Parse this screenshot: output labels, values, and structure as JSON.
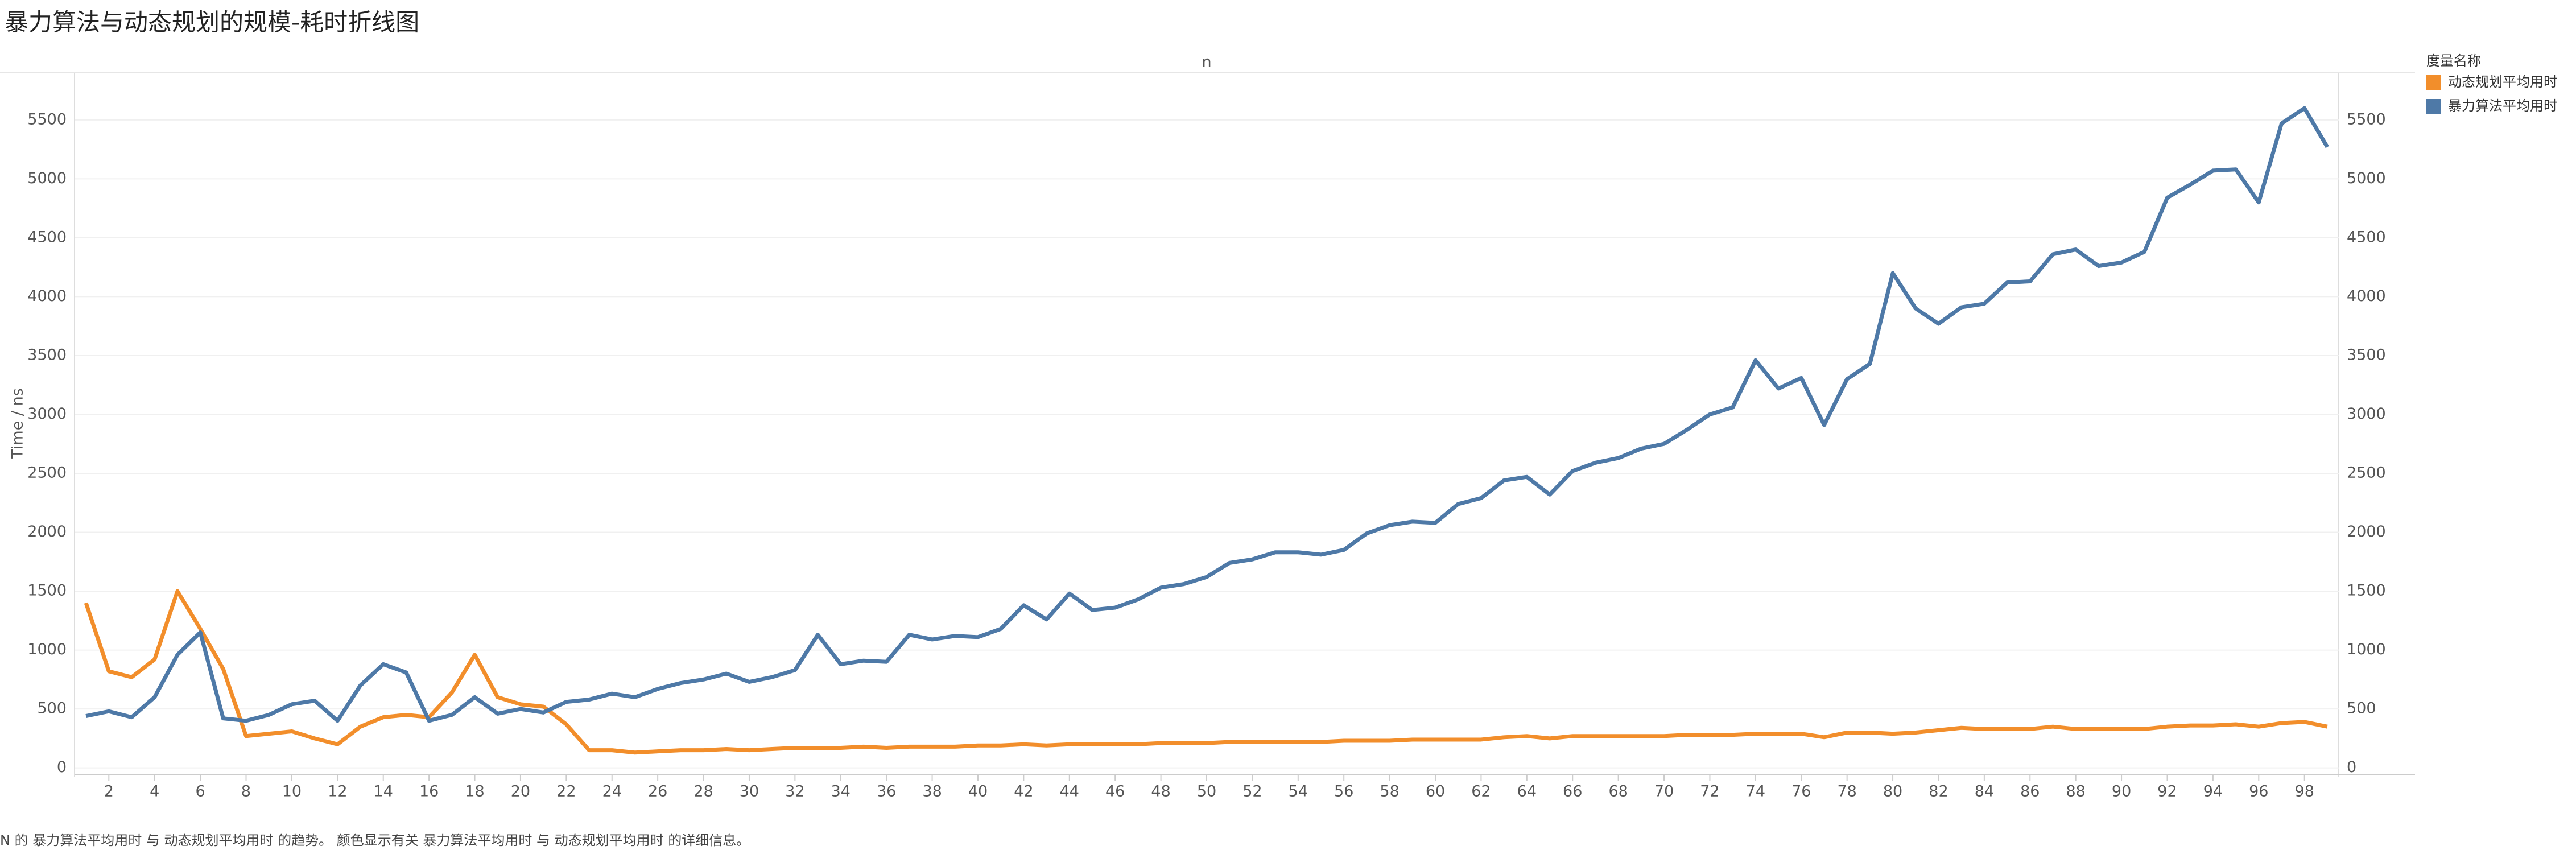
{
  "chart_data": {
    "type": "line",
    "title": "暴力算法与动态规划的规模-耗时折线图",
    "x_label": "n",
    "y_label": "Time / ns",
    "legend_title": "度量名称",
    "caption": "N 的 暴力算法平均用时 与 动态规划平均用时 的趋势。 颜色显示有关 暴力算法平均用时 与 动态规划平均用时 的详细信息。",
    "x": [
      1,
      2,
      3,
      4,
      5,
      6,
      7,
      8,
      9,
      10,
      11,
      12,
      13,
      14,
      15,
      16,
      17,
      18,
      19,
      20,
      21,
      22,
      23,
      24,
      25,
      26,
      27,
      28,
      29,
      30,
      31,
      32,
      33,
      34,
      35,
      36,
      37,
      38,
      39,
      40,
      41,
      42,
      43,
      44,
      45,
      46,
      47,
      48,
      49,
      50,
      51,
      52,
      53,
      54,
      55,
      56,
      57,
      58,
      59,
      60,
      61,
      62,
      63,
      64,
      65,
      66,
      67,
      68,
      69,
      70,
      71,
      72,
      73,
      74,
      75,
      76,
      77,
      78,
      79,
      80,
      81,
      82,
      83,
      84,
      85,
      86,
      87,
      88,
      89,
      90,
      91,
      92,
      93,
      94,
      95,
      96,
      97,
      98,
      99
    ],
    "series": [
      {
        "name": "动态规划平均用时",
        "color": "#f28e2b",
        "values": [
          1400,
          820,
          770,
          920,
          1500,
          1180,
          840,
          270,
          290,
          310,
          250,
          200,
          350,
          430,
          450,
          430,
          640,
          960,
          600,
          540,
          520,
          370,
          150,
          150,
          130,
          140,
          150,
          150,
          160,
          150,
          160,
          170,
          170,
          170,
          180,
          170,
          180,
          180,
          180,
          190,
          190,
          200,
          190,
          200,
          200,
          200,
          200,
          210,
          210,
          210,
          220,
          220,
          220,
          220,
          220,
          230,
          230,
          230,
          240,
          240,
          240,
          240,
          260,
          270,
          250,
          270,
          270,
          270,
          270,
          270,
          280,
          280,
          280,
          290,
          290,
          290,
          260,
          300,
          300,
          290,
          300,
          320,
          340,
          330,
          330,
          330,
          350,
          330,
          330,
          330,
          330,
          350,
          360,
          360,
          370,
          350,
          380,
          390,
          350
        ]
      },
      {
        "name": "暴力算法平均用时",
        "color": "#4e79a7",
        "values": [
          440,
          480,
          430,
          600,
          960,
          1150,
          420,
          400,
          450,
          540,
          570,
          400,
          700,
          880,
          810,
          400,
          450,
          600,
          460,
          500,
          470,
          560,
          580,
          630,
          600,
          670,
          720,
          750,
          800,
          730,
          770,
          830,
          1130,
          880,
          910,
          900,
          1130,
          1090,
          1120,
          1110,
          1180,
          1380,
          1260,
          1480,
          1340,
          1360,
          1430,
          1530,
          1560,
          1620,
          1740,
          1770,
          1830,
          1830,
          1810,
          1850,
          1990,
          2060,
          2090,
          2080,
          2240,
          2290,
          2440,
          2470,
          2320,
          2520,
          2590,
          2630,
          2710,
          2750,
          2870,
          3000,
          3060,
          3460,
          3220,
          3310,
          2910,
          3300,
          3430,
          4200,
          3900,
          3770,
          3910,
          3940,
          4120,
          4130,
          4360,
          4400,
          4260,
          4290,
          4380,
          4840,
          4950,
          5070,
          5080,
          4800,
          5470,
          5600,
          5270
        ]
      }
    ],
    "xlim": [
      0.5,
      99.5
    ],
    "xticks": [
      2,
      4,
      6,
      8,
      10,
      12,
      14,
      16,
      18,
      20,
      22,
      24,
      26,
      28,
      30,
      32,
      34,
      36,
      38,
      40,
      42,
      44,
      46,
      48,
      50,
      52,
      54,
      56,
      58,
      60,
      62,
      64,
      66,
      68,
      70,
      72,
      74,
      76,
      78,
      80,
      82,
      84,
      86,
      88,
      90,
      92,
      94,
      96,
      98
    ],
    "ylim": [
      -50,
      5900
    ],
    "yticks": [
      0,
      500,
      1000,
      1500,
      2000,
      2500,
      3000,
      3500,
      4000,
      4500,
      5000,
      5500
    ],
    "grid": true
  }
}
